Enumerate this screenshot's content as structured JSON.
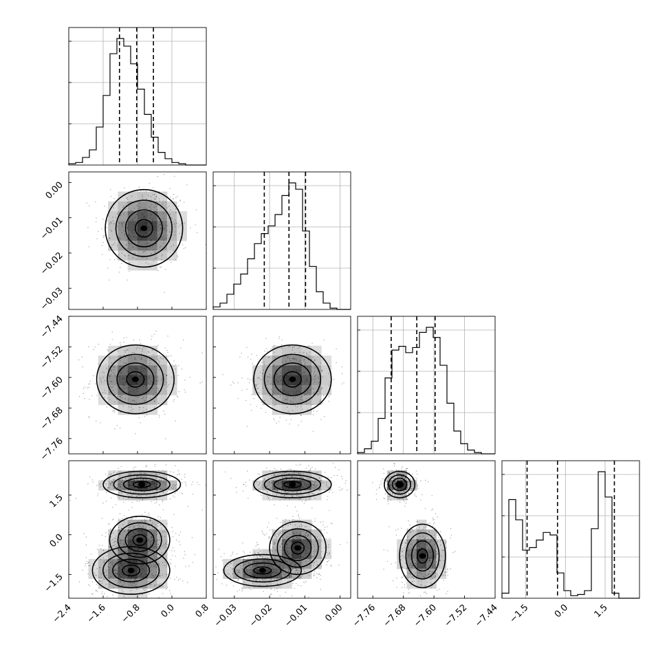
{
  "chart_data": {
    "type": "corner",
    "title": "",
    "grid": true,
    "parameters": [
      {
        "range": [
          -2.4,
          0.8
        ],
        "ticks": [
          "−2.4",
          "−1.6",
          "−0.8",
          "0.0",
          "0.8"
        ],
        "tick_values": [
          -2.4,
          -1.6,
          -0.8,
          0.0,
          0.8
        ],
        "quantiles": [
          -1.22,
          -0.82,
          -0.43
        ]
      },
      {
        "range": [
          -0.036,
          0.003
        ],
        "ticks": [
          "−0.03",
          "−0.02",
          "−0.01",
          "0.00"
        ],
        "tick_values": [
          -0.03,
          -0.02,
          -0.01,
          0.0
        ],
        "quantiles": [
          -0.0215,
          -0.0145,
          -0.0098
        ]
      },
      {
        "range": [
          -7.8,
          -7.44
        ],
        "ticks": [
          "−7.76",
          "−7.68",
          "−7.60",
          "−7.52",
          "−7.44"
        ],
        "tick_values": [
          -7.76,
          -7.68,
          -7.6,
          -7.52,
          -7.44
        ],
        "quantiles": [
          -7.712,
          -7.645,
          -7.597
        ]
      },
      {
        "range": [
          -2.4,
          2.8
        ],
        "ticks": [
          "−1.5",
          "0.0",
          "1.5"
        ],
        "tick_values": [
          -1.5,
          0.0,
          1.5
        ],
        "quantiles": [
          -1.45,
          -0.3,
          1.85
        ]
      }
    ],
    "diagonal_histograms": [
      {
        "bins": 20,
        "counts": [
          1,
          2,
          6,
          12,
          30,
          55,
          88,
          100,
          94,
          80,
          60,
          40,
          22,
          10,
          5,
          2,
          1,
          0,
          0,
          0
        ]
      },
      {
        "bins": 20,
        "counts": [
          2,
          5,
          12,
          20,
          28,
          40,
          52,
          60,
          66,
          75,
          90,
          100,
          95,
          62,
          34,
          14,
          5,
          1,
          0,
          0
        ]
      },
      {
        "bins": 20,
        "counts": [
          1,
          4,
          10,
          28,
          60,
          82,
          85,
          80,
          84,
          96,
          100,
          92,
          70,
          40,
          18,
          8,
          3,
          1,
          0,
          0
        ]
      },
      {
        "bins": 20,
        "counts": [
          4,
          78,
          62,
          38,
          40,
          46,
          52,
          50,
          20,
          6,
          2,
          3,
          6,
          55,
          100,
          80,
          4,
          0,
          0,
          0
        ]
      }
    ],
    "joint_panels": [
      {
        "row": 1,
        "col": 0,
        "modes": [
          {
            "x": -0.65,
            "y": -0.013,
            "sx": 0.45,
            "sy": 0.0055
          }
        ]
      },
      {
        "row": 2,
        "col": 0,
        "modes": [
          {
            "x": -0.85,
            "y": -7.605,
            "sx": 0.45,
            "sy": 0.045
          }
        ]
      },
      {
        "row": 2,
        "col": 1,
        "modes": [
          {
            "x": -0.0135,
            "y": -7.605,
            "sx": 0.0055,
            "sy": 0.045
          }
        ]
      },
      {
        "row": 3,
        "col": 0,
        "modes": [
          {
            "x": -0.7,
            "y": 1.9,
            "sx": 0.45,
            "sy": 0.25
          },
          {
            "x": -0.95,
            "y": -1.35,
            "sx": 0.45,
            "sy": 0.45
          },
          {
            "x": -0.75,
            "y": -0.2,
            "sx": 0.35,
            "sy": 0.45
          }
        ]
      },
      {
        "row": 3,
        "col": 1,
        "modes": [
          {
            "x": -0.0135,
            "y": 1.9,
            "sx": 0.0055,
            "sy": 0.25
          },
          {
            "x": -0.022,
            "y": -1.35,
            "sx": 0.0055,
            "sy": 0.3
          },
          {
            "x": -0.012,
            "y": -0.5,
            "sx": 0.004,
            "sy": 0.5
          }
        ]
      },
      {
        "row": 3,
        "col": 2,
        "modes": [
          {
            "x": -7.69,
            "y": 1.9,
            "sx": 0.02,
            "sy": 0.25
          },
          {
            "x": -7.63,
            "y": -0.8,
            "sx": 0.03,
            "sy": 0.6
          }
        ]
      }
    ]
  }
}
